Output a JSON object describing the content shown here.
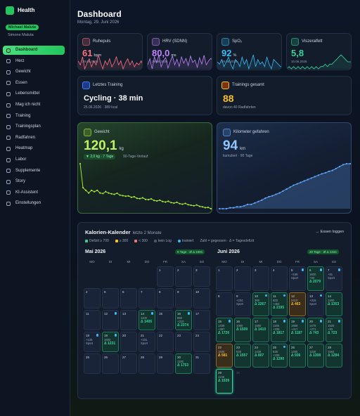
{
  "sidebar": {
    "app_title": "Health",
    "user": "Michael Maluta",
    "other_user": "Simone Maluta",
    "nav": [
      "Dashboard",
      "Herz",
      "Gewicht",
      "Essen",
      "Lebensmittel",
      "Mag ich nicht",
      "Training",
      "Trainingsplan",
      "Radfahren",
      "Heatmap",
      "Labor",
      "Supplemente",
      "Story",
      "KI-Assistent",
      "Einstellungen"
    ]
  },
  "header": {
    "title": "Dashboard",
    "date": "Montag, 29. Juni 2026"
  },
  "stat_cards": [
    {
      "label": "Ruhepuls",
      "value": "61",
      "unit": "bpm",
      "date": "29.06.2026",
      "color": "#fb7185",
      "spark": [
        64,
        62,
        66,
        60,
        63,
        65,
        61,
        64,
        62,
        67,
        63,
        60,
        64,
        62,
        65,
        61,
        63,
        66,
        62,
        64,
        60,
        63,
        65,
        62,
        64,
        61,
        63,
        62,
        64,
        61
      ]
    },
    {
      "label": "HRV (SDNN)",
      "value": "80,0",
      "unit": "ms",
      "date": "29.06.2026",
      "color": "#c084fc",
      "spark": [
        70,
        85,
        60,
        90,
        75,
        95,
        65,
        80,
        88,
        62,
        78,
        92,
        70,
        84,
        66,
        90,
        74,
        86,
        68,
        92,
        76,
        82,
        64,
        88,
        72,
        94,
        70,
        80,
        86,
        80
      ]
    },
    {
      "label": "SpO₂",
      "value": "92",
      "unit": "%",
      "date": "29.06.2026",
      "color": "#38bdf8",
      "spark": [
        94,
        93,
        95,
        92,
        94,
        96,
        93,
        91,
        95,
        94,
        92,
        96,
        93,
        95,
        91,
        94,
        97,
        92,
        95,
        93,
        94,
        92,
        96,
        93,
        91,
        95,
        94,
        93,
        92,
        92
      ]
    },
    {
      "label": "Viszeralfett",
      "value": "5,8",
      "date": "10.06.2026",
      "color": "#34d399",
      "spark": [
        5.5,
        5.6,
        5.5,
        5.6,
        5.5,
        5.6,
        5.5,
        5.6,
        5.5,
        5.6,
        5.5,
        5.6,
        5.5,
        5.6,
        5.5,
        5.6,
        5.6,
        5.7,
        5.6,
        5.7,
        5.7,
        5.8,
        5.9,
        6.0,
        6.1,
        6.0,
        5.9,
        5.8,
        5.8,
        5.8
      ]
    }
  ],
  "training": {
    "label": "Letztes Training",
    "value": "Cycling · 38 min",
    "sub": "25.06.2026 · 389 kcal"
  },
  "training_total": {
    "label": "Trainings gesamt",
    "value": "88",
    "sub": "davon 40 Radfahrten"
  },
  "weight": {
    "label": "Gewicht",
    "value": "120,1",
    "unit": "kg",
    "change": "▼ 2,0 kg · 7 Tage",
    "note": "90-Tage-Verlauf",
    "color": "#a3e635",
    "series": [
      137,
      128,
      127,
      126,
      127,
      126.5,
      127,
      126,
      125.8,
      126.5,
      126,
      125.7,
      125.5,
      125.9,
      125.2,
      125,
      124.8,
      124.9,
      124.4,
      124.6,
      124,
      123.9,
      124.2,
      123.6,
      123.5,
      123.8,
      123.2,
      123,
      123.3,
      122.8,
      122.6,
      122.9,
      122.4,
      122.2,
      122.5,
      122,
      121.8,
      122.1,
      121.6,
      121.4,
      121.2,
      121.5,
      121,
      120.8,
      120.5,
      120.6,
      120.1
    ]
  },
  "km": {
    "label": "Kilometer gefahren",
    "value": "94",
    "unit": "km",
    "note": "kumuliert · 90 Tage",
    "color": "#60a5fa",
    "series": [
      0,
      0,
      0,
      2,
      2,
      4,
      4,
      6,
      9,
      9,
      12,
      15,
      18,
      22,
      25,
      27,
      30,
      33,
      37,
      41,
      45,
      49,
      52,
      55,
      58,
      61,
      64,
      67,
      70,
      73,
      75,
      78,
      80,
      84,
      88,
      92,
      94,
      94
    ]
  },
  "calendar": {
    "title": "Kalorien-Kalender",
    "subtitle": "letzte 2 Monate",
    "link": "→ Essen loggen",
    "legend": [
      {
        "label": "Defizit ≥ 700",
        "color": "#34d399"
      },
      {
        "label": "≥ 300",
        "color": "#fbbf24"
      },
      {
        "label": "< 300",
        "color": "#f87171"
      },
      {
        "label": "kein Log",
        "color": "#4b5563"
      },
      {
        "label": "trainiert",
        "color": "#38bdf8"
      }
    ],
    "note": "Zahl = gegessen · Δ = Tagesdefizit",
    "weekdays": [
      "MO",
      "DI",
      "MI",
      "DO",
      "FR",
      "SA",
      "SO"
    ],
    "months": [
      {
        "name": "Mai 2026",
        "summary": "6 Tage · Ø Δ 1691",
        "weeks": [
          [
            null,
            null,
            null,
            null,
            {
              "day": "1"
            },
            {
              "day": "2"
            },
            {
              "day": "3"
            }
          ],
          [
            {
              "day": "4"
            },
            {
              "day": "5"
            },
            {
              "day": "6"
            },
            {
              "day": "7"
            },
            {
              "day": "8"
            },
            {
              "day": "9"
            },
            {
              "day": "10"
            }
          ],
          [
            {
              "day": "11"
            },
            {
              "day": "12",
              "trained": true
            },
            {
              "day": "13"
            },
            {
              "day": "14",
              "trained": true,
              "lines": [
                "1100"
              ],
              "delta": "Δ 1406",
              "status": "good"
            },
            {
              "day": "15"
            },
            {
              "day": "16",
              "trained": true,
              "lines": [
                "850",
                "+210"
              ],
              "delta": "Δ 2374",
              "status": "good"
            },
            {
              "day": "17"
            }
          ],
          [
            {
              "day": "18",
              "trained": true,
              "lines": [
                "+135",
                "Sport"
              ]
            },
            {
              "day": "19",
              "trained": true,
              "lines": [
                "1600"
              ],
              "delta": "Δ 1231",
              "status": "good"
            },
            {
              "day": "20"
            },
            {
              "day": "21",
              "lines": [
                "+231",
                "Sport"
              ]
            },
            {
              "day": "22"
            },
            {
              "day": "23"
            },
            {
              "day": "24"
            }
          ],
          [
            {
              "day": "25"
            },
            {
              "day": "26"
            },
            {
              "day": "27"
            },
            {
              "day": "28"
            },
            {
              "day": "29"
            },
            {
              "day": "30",
              "lines": [
                "1100"
              ],
              "delta": "Δ 1753",
              "status": "good"
            },
            {
              "day": "31"
            }
          ]
        ]
      },
      {
        "name": "Juni 2026",
        "summary": "20 Tage · Ø Δ 1344",
        "weeks": [
          [
            {
              "day": "1"
            },
            {
              "day": "2"
            },
            {
              "day": "3"
            },
            {
              "day": "4"
            },
            {
              "day": "5",
              "trained": true,
              "lines": [
                "+158",
                "Sport"
              ]
            },
            {
              "day": "6",
              "trained": true,
              "lines": [
                "1600",
                "+93"
              ],
              "delta": "Δ 2079",
              "status": "good"
            },
            {
              "day": "7",
              "trained": true,
              "lines": [
                "+91",
                "Sport"
              ]
            }
          ],
          [
            {
              "day": "8"
            },
            {
              "day": "9",
              "lines": [
                "+234",
                "Sport"
              ]
            },
            {
              "day": "10",
              "trained": true,
              "lines": [
                "360"
              ],
              "delta": "Δ 2267",
              "status": "good"
            },
            {
              "day": "11",
              "trained": true,
              "lines": [
                "600",
                "+493"
              ],
              "delta": "Δ 2195",
              "status": "good"
            },
            {
              "day": "12",
              "lines": [
                "2410"
              ],
              "delta": "Δ 463",
              "status": "mid"
            },
            {
              "day": "13",
              "trained": true,
              "lines": [
                "+315",
                "Sport"
              ]
            },
            {
              "day": "14",
              "lines": [
                "1200"
              ],
              "delta": "Δ 1353",
              "status": "good"
            }
          ],
          [
            {
              "day": "15",
              "trained": true,
              "lines": [
                "1439",
                "+397"
              ],
              "delta": "Δ 1726",
              "status": "good"
            },
            {
              "day": "16",
              "lines": [
                "1060"
              ],
              "delta": "Δ 1509",
              "status": "good"
            },
            {
              "day": "17",
              "lines": [
                "1660"
              ],
              "delta": "Δ 1410",
              "status": "good"
            },
            {
              "day": "18",
              "trained": true,
              "lines": [
                "1165",
                "+335"
              ],
              "delta": "Δ 1817",
              "status": "good"
            },
            {
              "day": "19",
              "trained": true,
              "lines": [
                "1659",
                "+417"
              ],
              "delta": "Δ 1187",
              "status": "good"
            },
            {
              "day": "20",
              "trained": true,
              "lines": [
                "1479",
                "+271"
              ],
              "delta": "Δ 743",
              "status": "good"
            },
            {
              "day": "21",
              "trained": true,
              "lines": [
                "1520",
                "+93"
              ],
              "delta": "Δ 723",
              "status": "good"
            }
          ],
          [
            {
              "day": "22",
              "lines": [
                "1836"
              ],
              "delta": "Δ 581",
              "status": "mid"
            },
            {
              "day": "23",
              "lines": [
                "828"
              ],
              "delta": "Δ 1557",
              "status": "good"
            },
            {
              "day": "24",
              "lines": [
                "1436"
              ],
              "delta": "Δ 807",
              "status": "good"
            },
            {
              "day": "25",
              "trained": true,
              "lines": [
                "828",
                "+335"
              ],
              "delta": "Δ 1290",
              "status": "good"
            },
            {
              "day": "26",
              "lines": [
                "1265"
              ],
              "delta": "Δ 936",
              "status": "good"
            },
            {
              "day": "27",
              "lines": [
                "1158"
              ],
              "delta": "Δ 1308",
              "status": "good"
            },
            {
              "day": "28",
              "lines": [
                "1584"
              ],
              "delta": "Δ 1284",
              "status": "good"
            }
          ],
          [
            {
              "day": "29",
              "lines": [
                "1148"
              ],
              "delta": "Δ 1539",
              "status": "good",
              "today": true
            },
            {
              "day": "30",
              "dim": true
            },
            null,
            null,
            null,
            null,
            null
          ]
        ]
      }
    ]
  }
}
